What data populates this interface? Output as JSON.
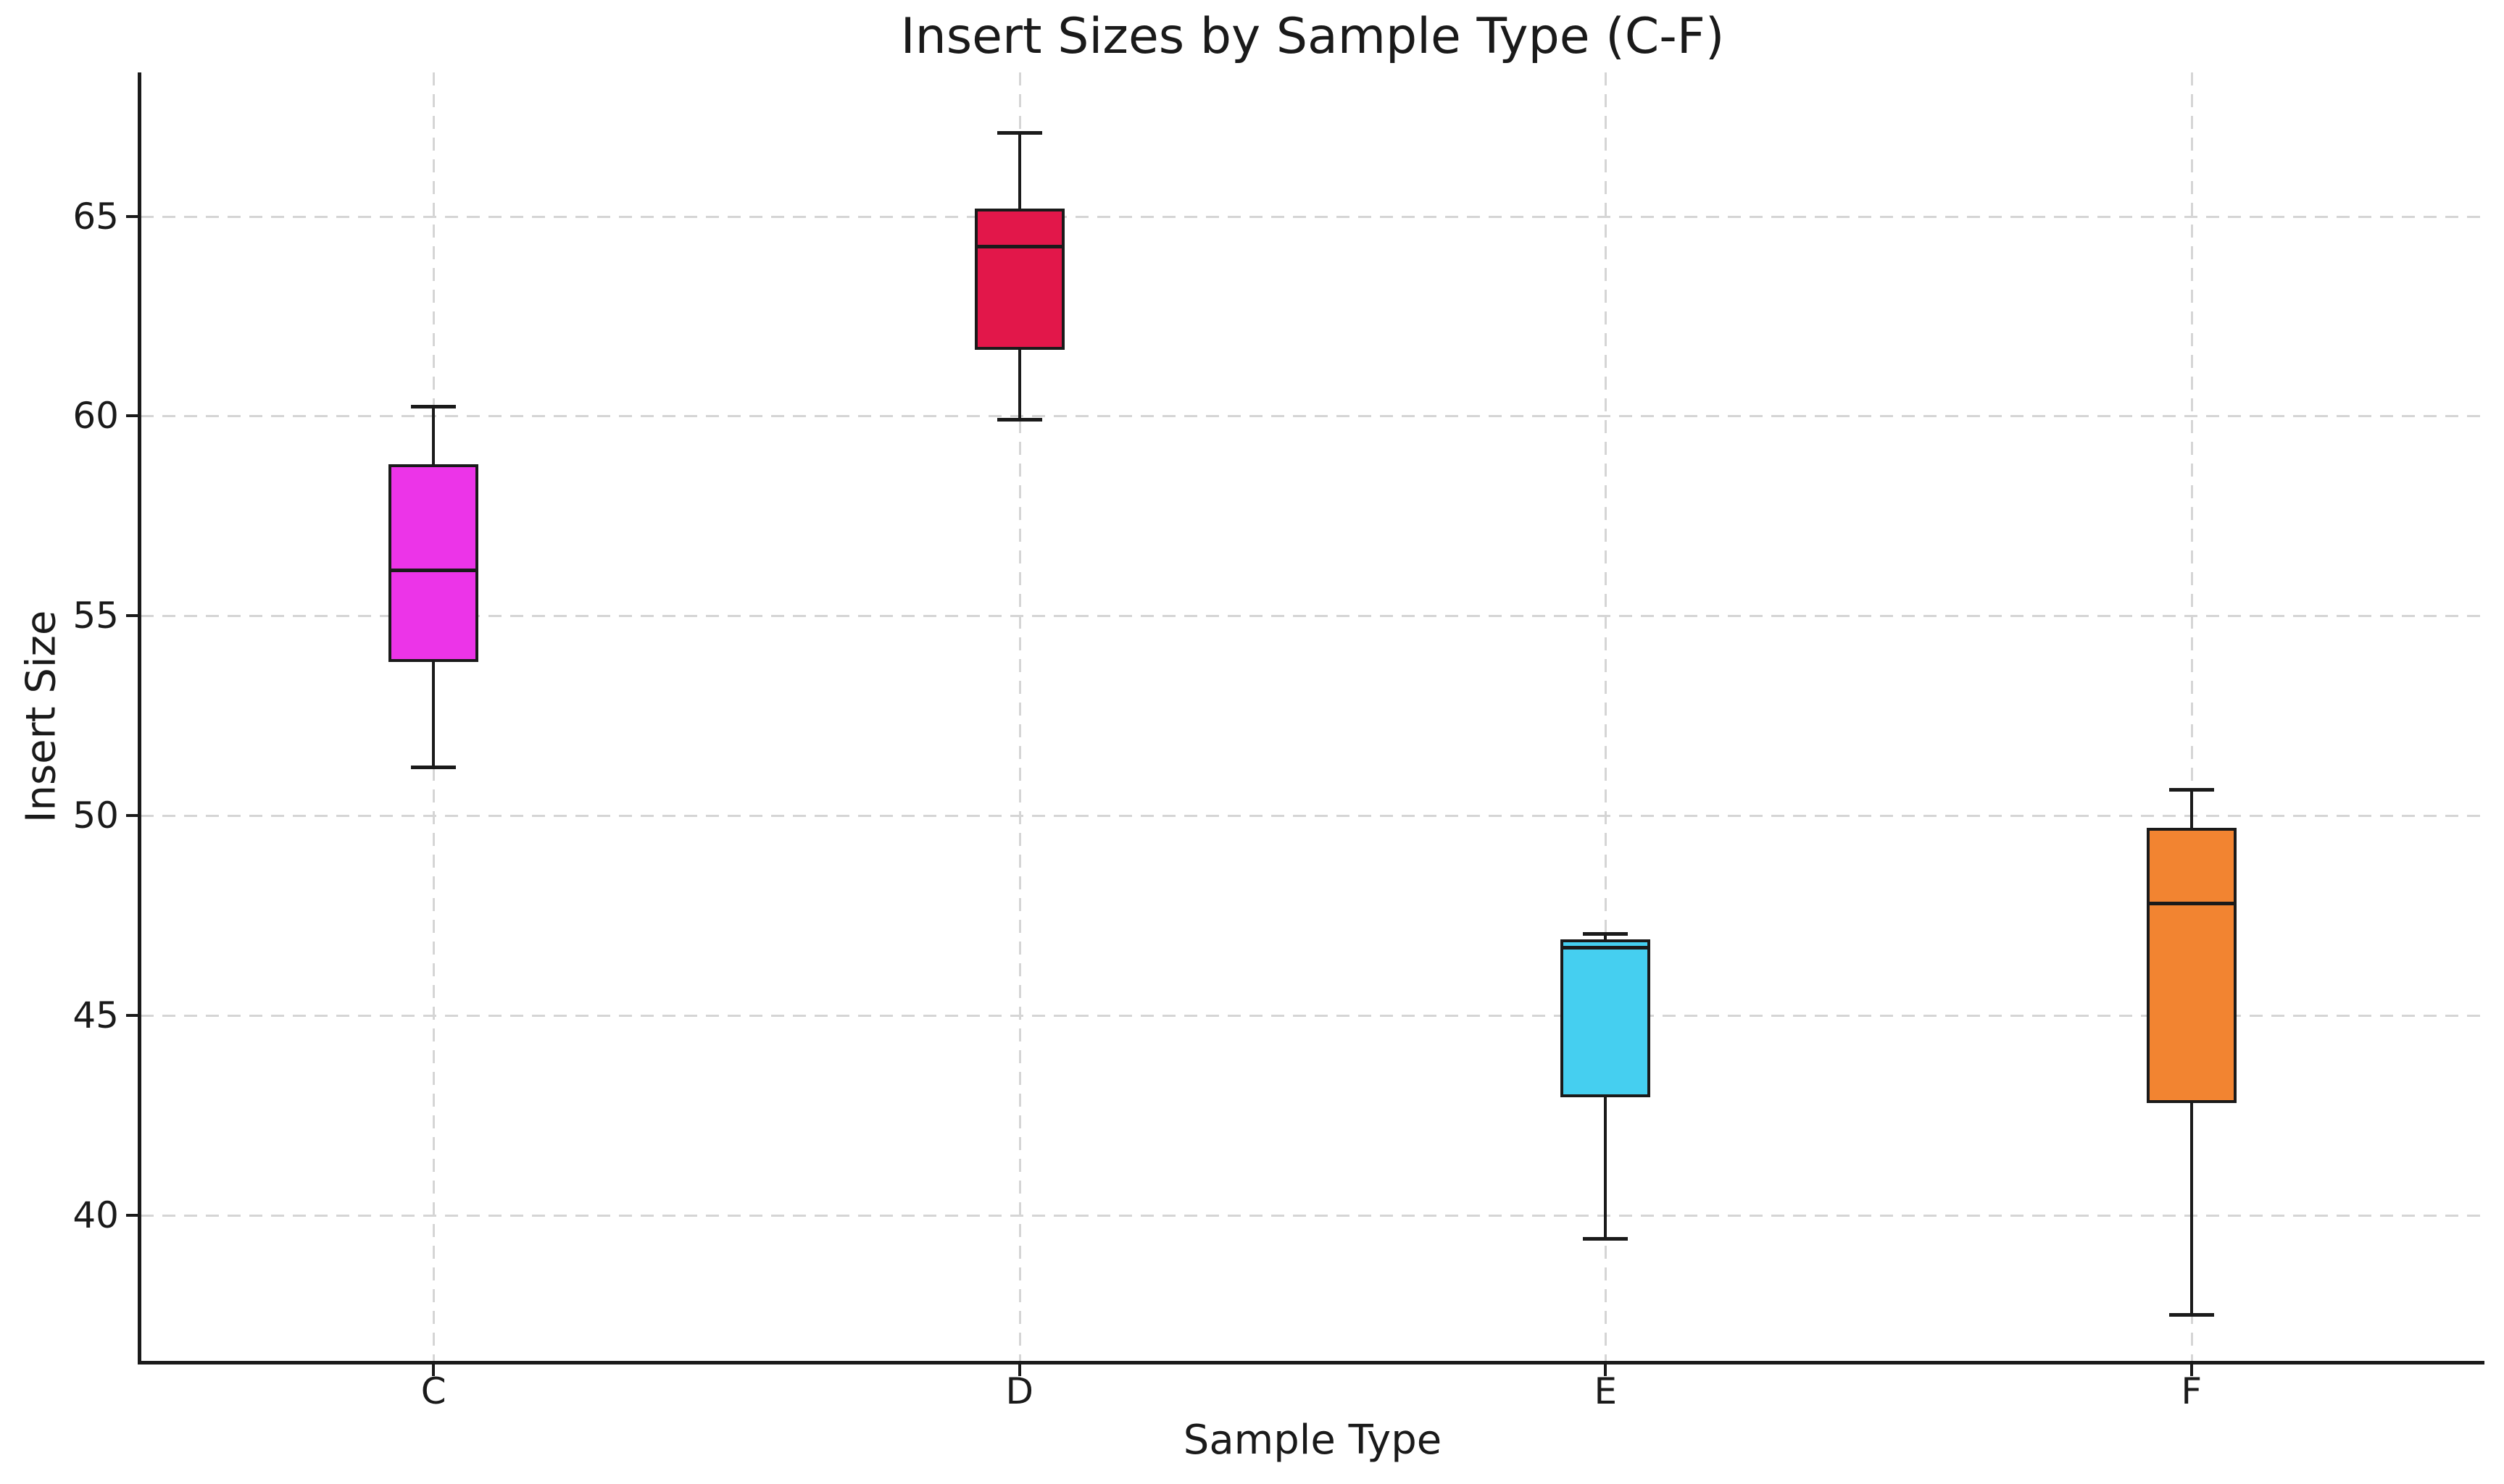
{
  "chart_data": {
    "type": "boxplot",
    "title": "Insert Sizes by Sample Type (C-F)",
    "xlabel": "Sample Type",
    "ylabel": "Insert Size",
    "categories": [
      "C",
      "D",
      "E",
      "F"
    ],
    "yticks": [
      40,
      45,
      50,
      55,
      60,
      65
    ],
    "ylim": [
      36.35,
      68.6
    ],
    "grid": "dashed light-gray gridlines on both axes, left and bottom spines only",
    "legend": "none",
    "series": [
      {
        "category": "C",
        "whisker_low": 51.2,
        "q1": 53.85,
        "median": 56.15,
        "q3": 58.8,
        "whisker_high": 60.25,
        "fill_color": "#EC34E8"
      },
      {
        "category": "D",
        "whisker_low": 59.9,
        "q1": 61.65,
        "median": 64.25,
        "q3": 65.2,
        "whisker_high": 67.1,
        "fill_color": "#E2174A"
      },
      {
        "category": "E",
        "whisker_low": 39.4,
        "q1": 42.95,
        "median": 46.7,
        "q3": 46.9,
        "whisker_high": 47.05,
        "fill_color": "#45CFF0"
      },
      {
        "category": "F",
        "whisker_low": 37.5,
        "q1": 42.8,
        "median": 47.8,
        "q3": 49.7,
        "whisker_high": 50.65,
        "fill_color": "#F28431"
      }
    ],
    "colors": {
      "box_edge": "#1a1a1a",
      "median": "#1a1a1a",
      "whisker": "#1a1a1a",
      "gridline": "#d5d5d5",
      "text": "#1a1a1a",
      "background": "#ffffff"
    }
  }
}
